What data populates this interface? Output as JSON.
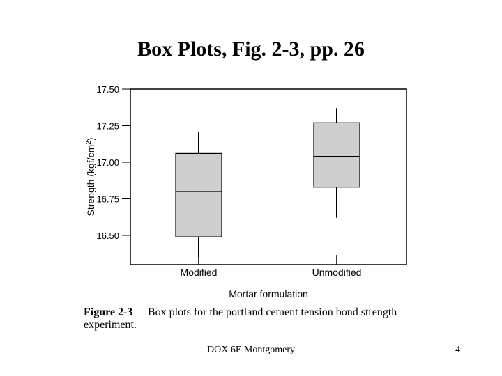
{
  "slide": {
    "title": "Box Plots, Fig. 2-3, pp. 26",
    "footer": "DOX 6E Montgomery",
    "page_number": "4"
  },
  "caption": {
    "label": "Figure 2-3",
    "text_line1": "Box plots for the portland cement tension bond strength",
    "text_line2": "experiment."
  },
  "chart_data": {
    "type": "box",
    "title": "",
    "xlabel": "Mortar formulation",
    "ylabel_prefix": "Strength (kgf/cm",
    "ylabel_sup": "2",
    "ylabel_suffix": ")",
    "ylim": [
      16.3,
      17.5
    ],
    "y_ticks": [
      "16.50",
      "16.75",
      "17.00",
      "17.25",
      "17.50"
    ],
    "categories": [
      "Modified",
      "Unmodified"
    ],
    "boxes": [
      {
        "category": "Modified",
        "min": 16.35,
        "q1": 16.49,
        "median": 16.8,
        "q3": 17.06,
        "max": 17.21
      },
      {
        "category": "Unmodified",
        "min": 16.62,
        "q1": 16.83,
        "median": 17.04,
        "q3": 17.27,
        "max": 17.37
      }
    ],
    "box_fill": "#cfcfcf",
    "grid": false
  }
}
